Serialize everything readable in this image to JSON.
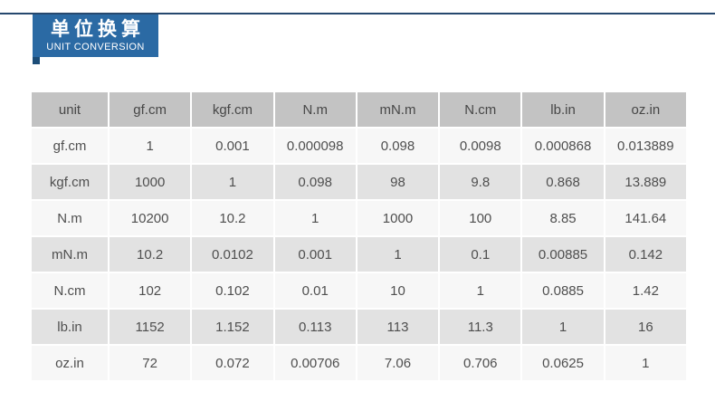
{
  "header": {
    "title_zh": "单位换算",
    "title_en": "UNIT CONVERSION"
  },
  "colors": {
    "rule": "#26486e",
    "ribbon": "#2b6aa4",
    "ribbon_fold": "#1d4d78",
    "table_header_bg": "#c3c3c3",
    "table_header_text": "#474747",
    "row_light": "#f7f7f7",
    "row_gray": "#e2e2e2",
    "cell_text": "#4f4f4f",
    "page_bg": "#ffffff"
  },
  "chart_data": {
    "type": "table",
    "title": "单位换算 / UNIT CONVERSION",
    "columns": [
      "unit",
      "gf.cm",
      "kgf.cm",
      "N.m",
      "mN.m",
      "N.cm",
      "lb.in",
      "oz.in"
    ],
    "rows": [
      {
        "unit": "gf.cm",
        "values": [
          "1",
          "0.001",
          "0.000098",
          "0.098",
          "0.0098",
          "0.000868",
          "0.013889"
        ]
      },
      {
        "unit": "kgf.cm",
        "values": [
          "1000",
          "1",
          "0.098",
          "98",
          "9.8",
          "0.868",
          "13.889"
        ]
      },
      {
        "unit": "N.m",
        "values": [
          "10200",
          "10.2",
          "1",
          "1000",
          "100",
          "8.85",
          "141.64"
        ]
      },
      {
        "unit": "mN.m",
        "values": [
          "10.2",
          "0.0102",
          "0.001",
          "1",
          "0.1",
          "0.00885",
          "0.142"
        ]
      },
      {
        "unit": "N.cm",
        "values": [
          "102",
          "0.102",
          "0.01",
          "10",
          "1",
          "0.0885",
          "1.42"
        ]
      },
      {
        "unit": "lb.in",
        "values": [
          "1152",
          "1.152",
          "0.113",
          "113",
          "11.3",
          "1",
          "16"
        ]
      },
      {
        "unit": "oz.in",
        "values": [
          "72",
          "0.072",
          "0.00706",
          "7.06",
          "0.706",
          "0.0625",
          "1"
        ]
      }
    ]
  }
}
